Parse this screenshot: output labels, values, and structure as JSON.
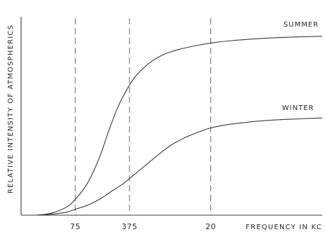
{
  "chart_data": {
    "type": "line",
    "ylabel": "RELATIVE INTENSITY OF ATMOSPHERICS",
    "xlabel": "FREQUENCY IN KC",
    "xlim": [
      0,
      100
    ],
    "ylim": [
      0,
      100
    ],
    "x_ticks": [
      {
        "x": 18,
        "label": "75"
      },
      {
        "x": 36,
        "label": "375"
      },
      {
        "x": 63,
        "label": "20"
      }
    ],
    "grid": false,
    "series": [
      {
        "name": "SUMMER",
        "x": [
          5,
          10,
          15,
          18,
          22,
          26,
          29,
          32,
          35,
          38,
          42,
          46,
          50,
          55,
          60,
          65,
          70,
          75,
          80,
          85,
          90,
          95,
          100
        ],
        "y": [
          0,
          1,
          4,
          8,
          16,
          29,
          42,
          54,
          63,
          70,
          76,
          80,
          82.5,
          84.5,
          86,
          87.2,
          88,
          88.6,
          89.1,
          89.5,
          89.8,
          90,
          90.2
        ]
      },
      {
        "name": "WINTER",
        "x": [
          5,
          10,
          15,
          18,
          22,
          26,
          30,
          34,
          38,
          42,
          46,
          50,
          55,
          60,
          63,
          68,
          73,
          78,
          83,
          88,
          93,
          100
        ],
        "y": [
          0,
          0.5,
          1.5,
          3,
          5,
          8,
          12,
          16,
          21,
          26,
          31,
          35.5,
          39.5,
          42.5,
          44,
          45.5,
          46.5,
          47.3,
          47.9,
          48.3,
          48.6,
          49
        ]
      }
    ],
    "series_label_anchor": [
      {
        "x": 93,
        "y": 95
      },
      {
        "x": 92,
        "y": 53
      }
    ],
    "legend": "inline-labels"
  }
}
